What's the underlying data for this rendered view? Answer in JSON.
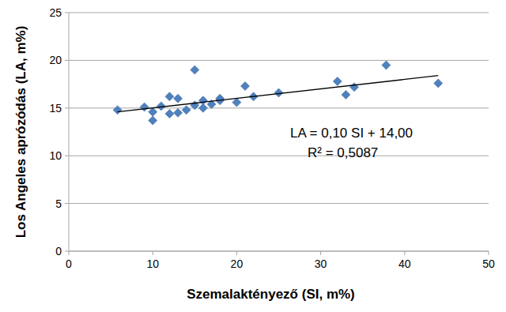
{
  "chart_data": {
    "type": "scatter",
    "x_label": "Szemalaktényező (SI, m%)",
    "y_label": "Los Angeles aprózódás (LA, m%)",
    "xlim": [
      0,
      50
    ],
    "xticks": [
      0,
      10,
      20,
      30,
      40,
      50
    ],
    "ylim": [
      0,
      25
    ],
    "yticks": [
      0,
      5,
      10,
      15,
      20,
      25
    ],
    "grid": true,
    "annotations": [
      "LA = 0,10 SI + 14,00",
      "R² = 0,5087"
    ],
    "series": [
      {
        "type": "scatter",
        "color": "#4f81bd",
        "marker": "diamond",
        "x": [
          5.8,
          9,
          10,
          10,
          11,
          12,
          12,
          13,
          13,
          14,
          15,
          15,
          16,
          16,
          17,
          18,
          18,
          20,
          21,
          22,
          25,
          32,
          33,
          34,
          37.8,
          44
        ],
        "values": [
          14.8,
          15.1,
          14.6,
          13.7,
          15.2,
          16.2,
          14.4,
          16.0,
          14.5,
          14.8,
          19.0,
          15.3,
          15.8,
          15.0,
          15.4,
          16.0,
          15.8,
          15.6,
          17.3,
          16.2,
          16.6,
          17.8,
          16.4,
          17.2,
          19.5,
          17.6
        ]
      },
      {
        "type": "line",
        "color": "#000000",
        "line_style": "solid",
        "x": [
          5.8,
          44
        ],
        "values": [
          14.6,
          18.4
        ]
      }
    ]
  }
}
